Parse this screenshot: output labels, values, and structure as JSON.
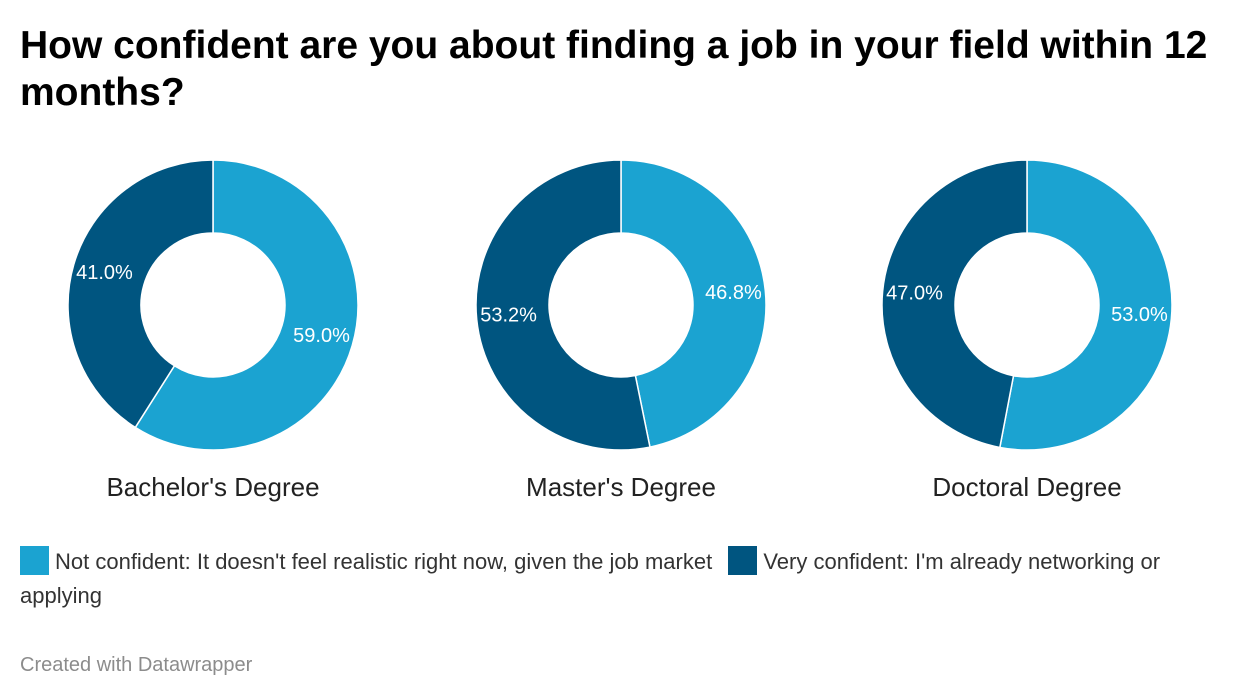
{
  "title": "How confident are you about finding a job in your field within 12 months?",
  "footer": "Created with Datawrapper",
  "colors": {
    "not_confident": "#1ba3d1",
    "very_confident": "#005580"
  },
  "legend": [
    {
      "key": "not_confident",
      "label": "Not confident: It doesn't feel realistic right now, given the job market"
    },
    {
      "key": "very_confident",
      "label": "Very confident: I'm already networking or applying"
    }
  ],
  "chart_data": {
    "type": "pie",
    "title": "How confident are you about finding a job in your field within 12 months?",
    "series": [
      {
        "name": "Not confident: It doesn't feel realistic right now, given the job market",
        "key": "not_confident"
      },
      {
        "name": "Very confident: I'm already networking or applying",
        "key": "very_confident"
      }
    ],
    "groups": [
      {
        "label": "Bachelor's Degree",
        "slices": [
          {
            "key": "not_confident",
            "value": 59.0,
            "label": "59.0%"
          },
          {
            "key": "very_confident",
            "value": 41.0,
            "label": "41.0%"
          }
        ]
      },
      {
        "label": "Master's Degree",
        "slices": [
          {
            "key": "not_confident",
            "value": 46.8,
            "label": "46.8%"
          },
          {
            "key": "very_confident",
            "value": 53.2,
            "label": "53.2%"
          }
        ]
      },
      {
        "label": "Doctoral Degree",
        "slices": [
          {
            "key": "not_confident",
            "value": 53.0,
            "label": "53.0%"
          },
          {
            "key": "very_confident",
            "value": 47.0,
            "label": "47.0%"
          }
        ]
      }
    ]
  }
}
